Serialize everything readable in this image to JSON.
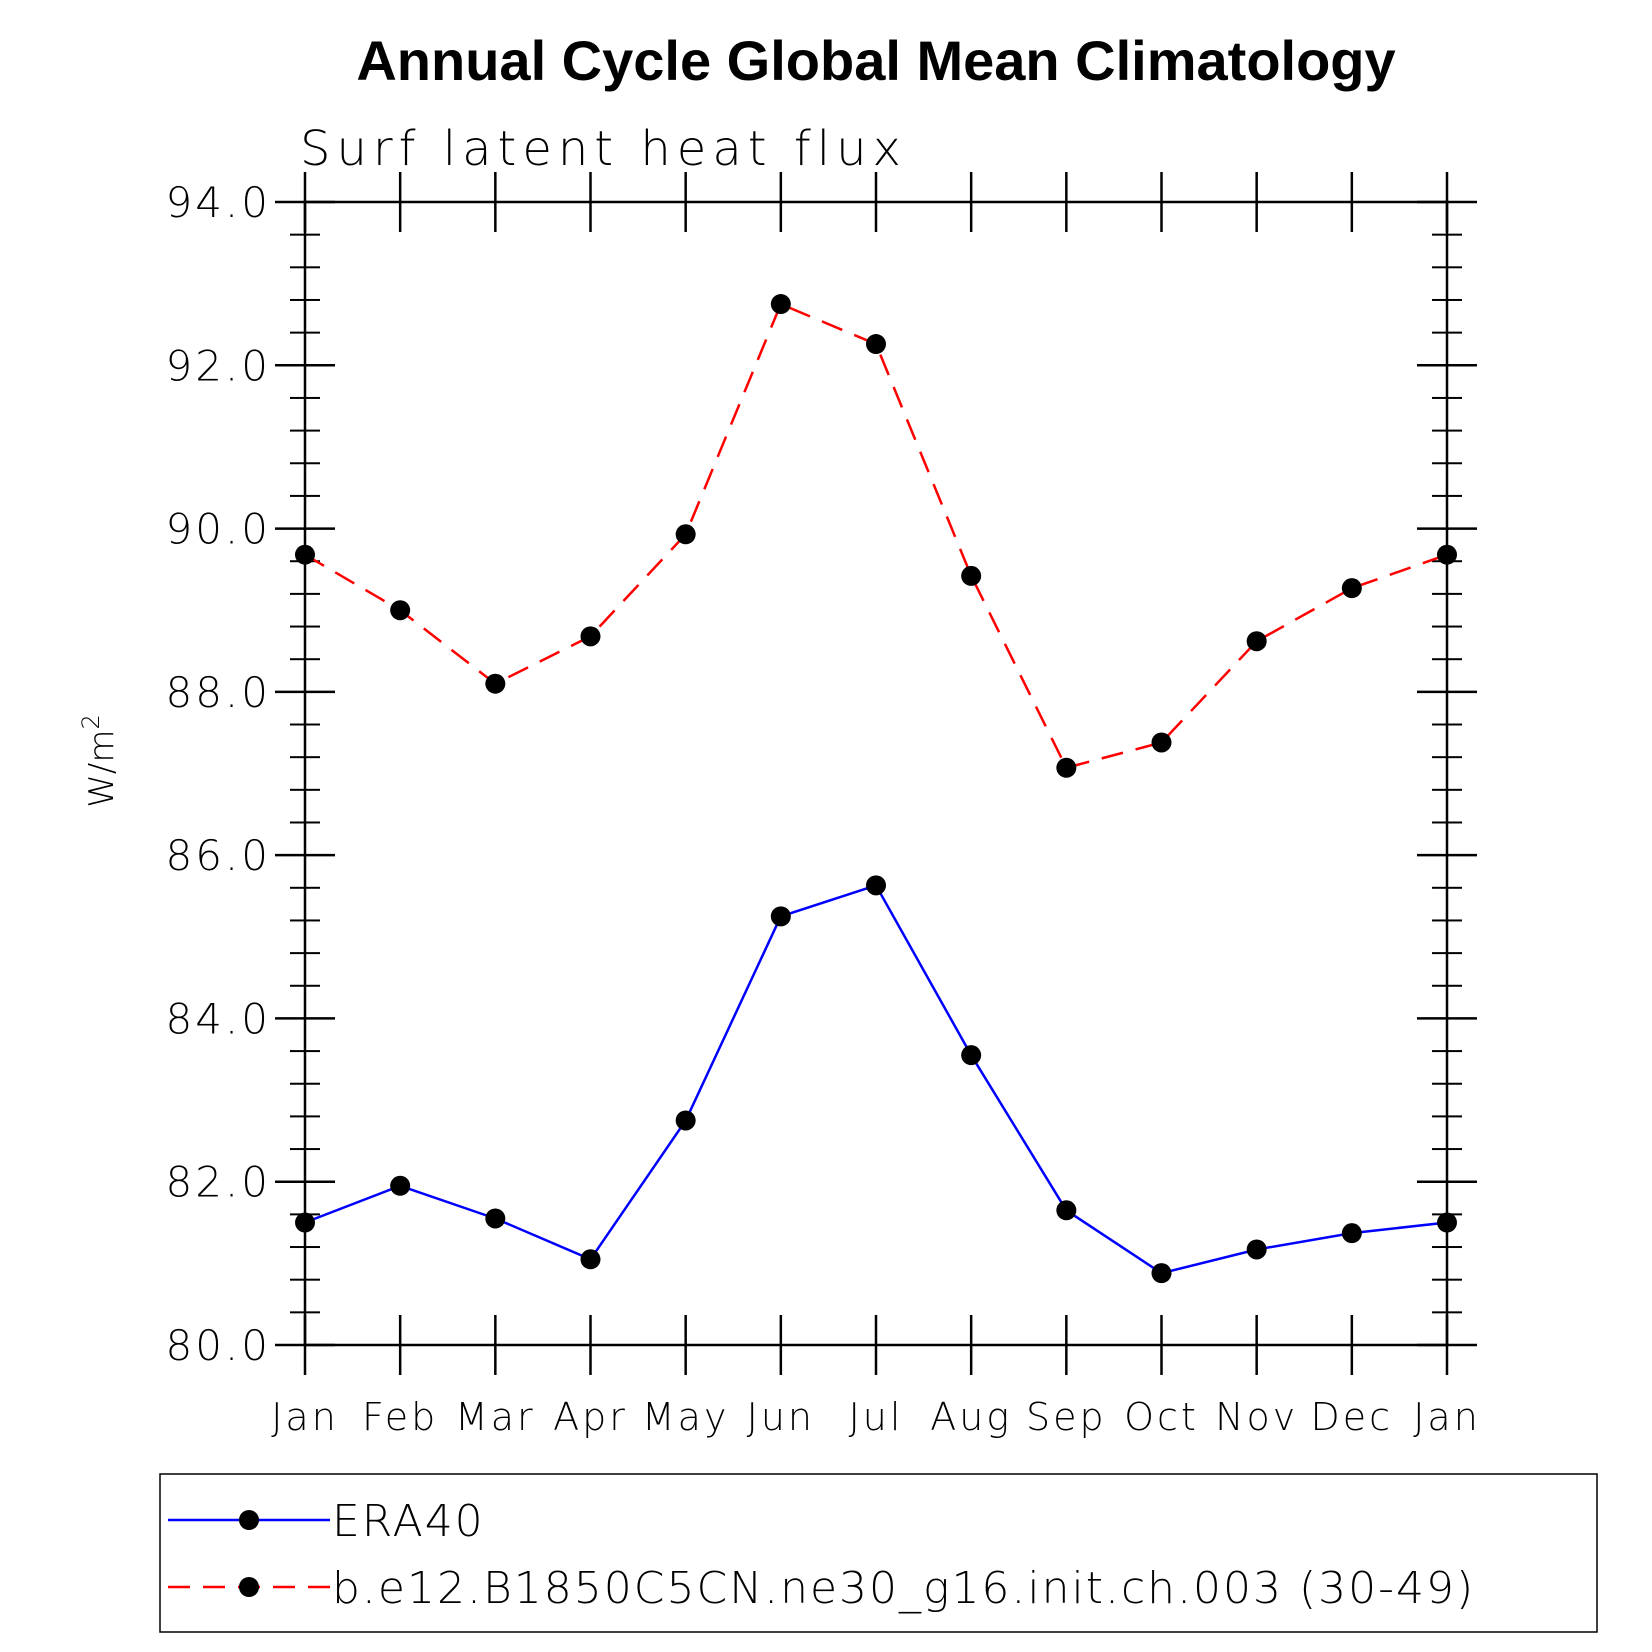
{
  "chart_data": {
    "type": "line",
    "title": "Annual Cycle Global Mean Climatology",
    "subtitle": "Surf latent heat flux",
    "ylabel": "W/m",
    "ylabel_superscript": "2",
    "ylim": [
      80.0,
      94.0
    ],
    "yticks": [
      "80.0",
      "82.0",
      "84.0",
      "86.0",
      "88.0",
      "90.0",
      "92.0",
      "94.0"
    ],
    "categories": [
      "Jan",
      "Feb",
      "Mar",
      "Apr",
      "May",
      "Jun",
      "Jul",
      "Aug",
      "Sep",
      "Oct",
      "Nov",
      "Dec",
      "Jan"
    ],
    "grid": false,
    "legend_position": "bottom",
    "series": [
      {
        "name": "ERA40",
        "color": "#0000ff",
        "dash": "solid",
        "marker": "filled-circle",
        "values": [
          81.5,
          81.95,
          81.55,
          81.05,
          82.75,
          85.25,
          85.63,
          83.55,
          81.65,
          80.88,
          81.17,
          81.37,
          81.5
        ]
      },
      {
        "name": "b.e12.B1850C5CN.ne30_g16.init.ch.003 (30-49)",
        "color": "#ff0000",
        "dash": "dashed",
        "marker": "filled-circle",
        "values": [
          89.68,
          89.0,
          88.1,
          88.68,
          89.93,
          92.75,
          92.26,
          89.42,
          87.07,
          87.38,
          88.62,
          89.27,
          89.68
        ]
      }
    ]
  }
}
